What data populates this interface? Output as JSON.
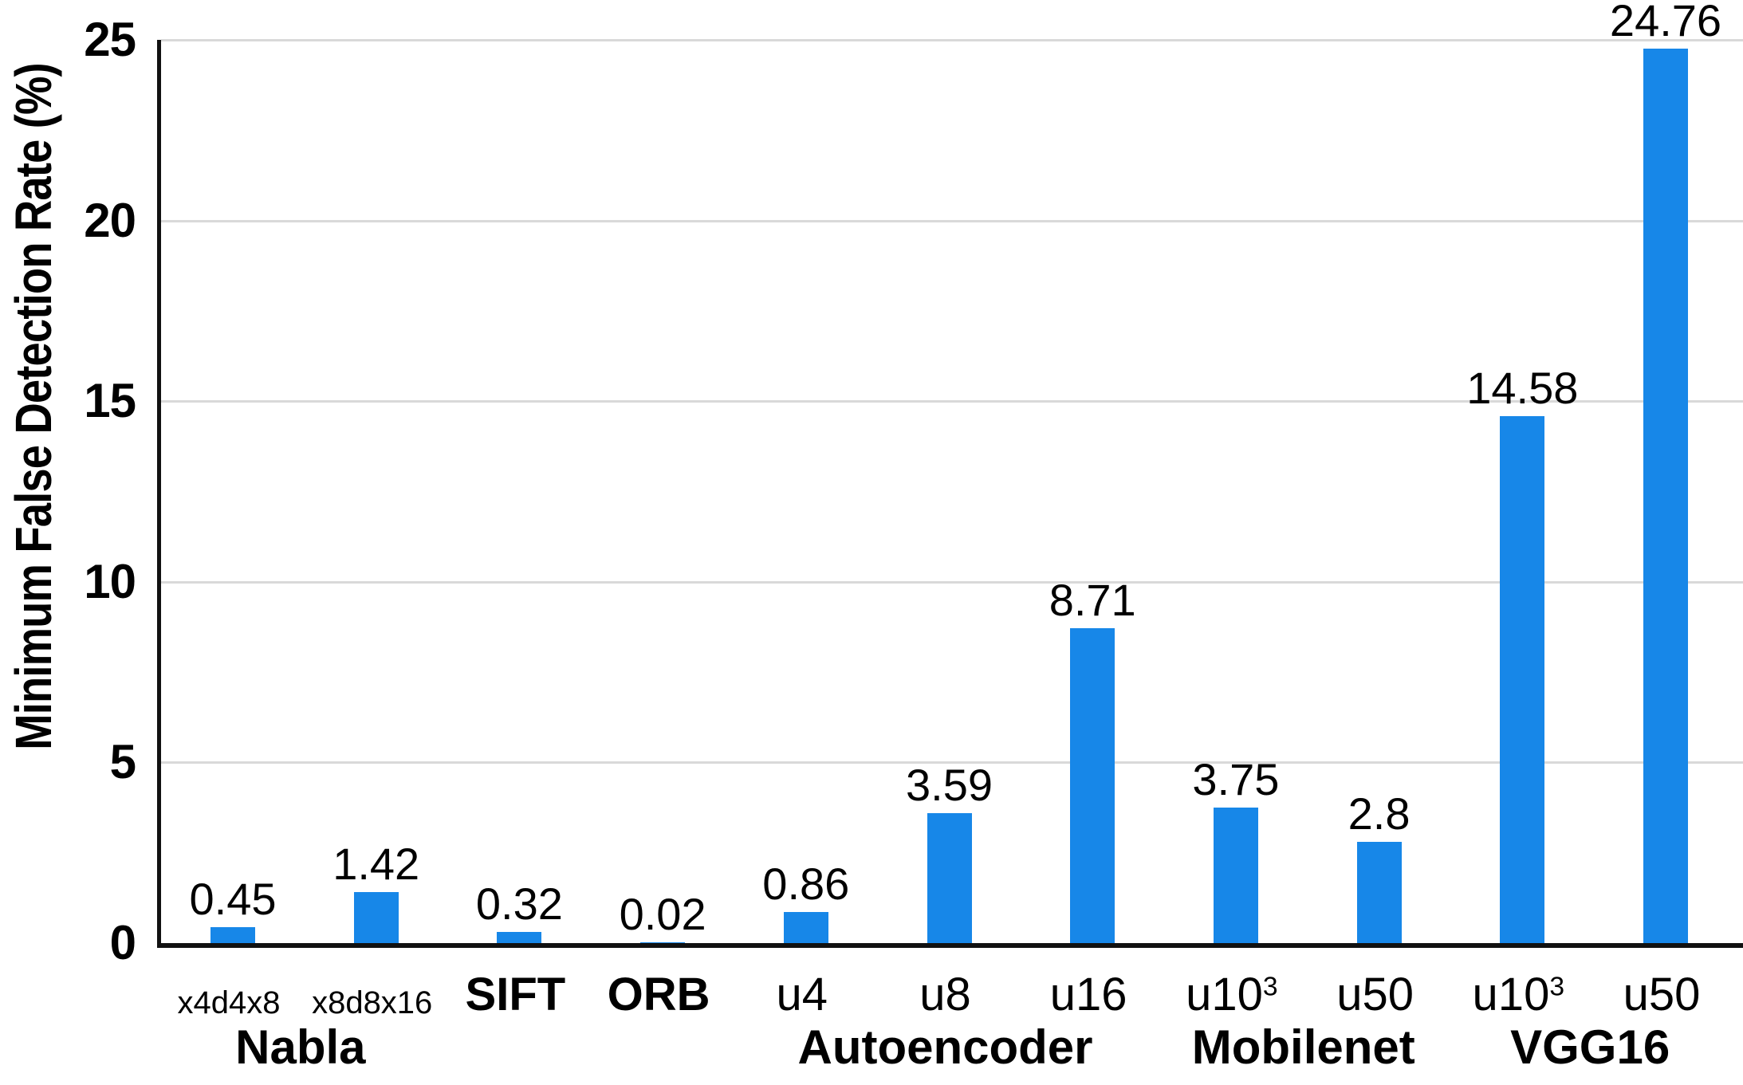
{
  "chart_data": {
    "type": "bar",
    "title": "",
    "ylabel": "Minimum False Detection Rate (%)",
    "xlabel": "",
    "ylim": [
      0,
      25
    ],
    "yticks": [
      0,
      5,
      10,
      15,
      20,
      25
    ],
    "grid": "horizontal-gridlines",
    "legend": "none",
    "bar_color": "#1787E8",
    "gridline_color": "#D9D9D9",
    "axis_color": "#111111",
    "categories": [
      {
        "text": "x4d4x8",
        "style": "small"
      },
      {
        "text": "x8d8x16",
        "style": "small"
      },
      {
        "text": "SIFT",
        "style": "bold"
      },
      {
        "text": "ORB",
        "style": "bold"
      },
      {
        "text": "u4",
        "style": "normal"
      },
      {
        "text": "u8",
        "style": "normal"
      },
      {
        "text": "u16",
        "style": "normal"
      },
      {
        "text": "u10",
        "sup": "3",
        "style": "normal"
      },
      {
        "text": "u50",
        "style": "normal"
      },
      {
        "text": "u10",
        "sup": "3",
        "style": "normal"
      },
      {
        "text": "u50",
        "style": "normal"
      }
    ],
    "values": [
      0.45,
      1.42,
      0.32,
      0.02,
      0.86,
      3.59,
      8.71,
      3.75,
      2.8,
      14.58,
      24.76
    ],
    "value_labels": [
      "0.45",
      "1.42",
      "0.32",
      "0.02",
      "0.86",
      "3.59",
      "8.71",
      "3.75",
      "2.8",
      "14.58",
      "24.76"
    ],
    "groups": [
      {
        "label": "Nabla",
        "start_index": 0,
        "end_index": 1
      },
      {
        "label": "Autoencoder",
        "start_index": 4,
        "end_index": 6
      },
      {
        "label": "Mobilenet",
        "start_index": 7,
        "end_index": 8
      },
      {
        "label": "VGG16",
        "start_index": 9,
        "end_index": 10
      }
    ]
  }
}
